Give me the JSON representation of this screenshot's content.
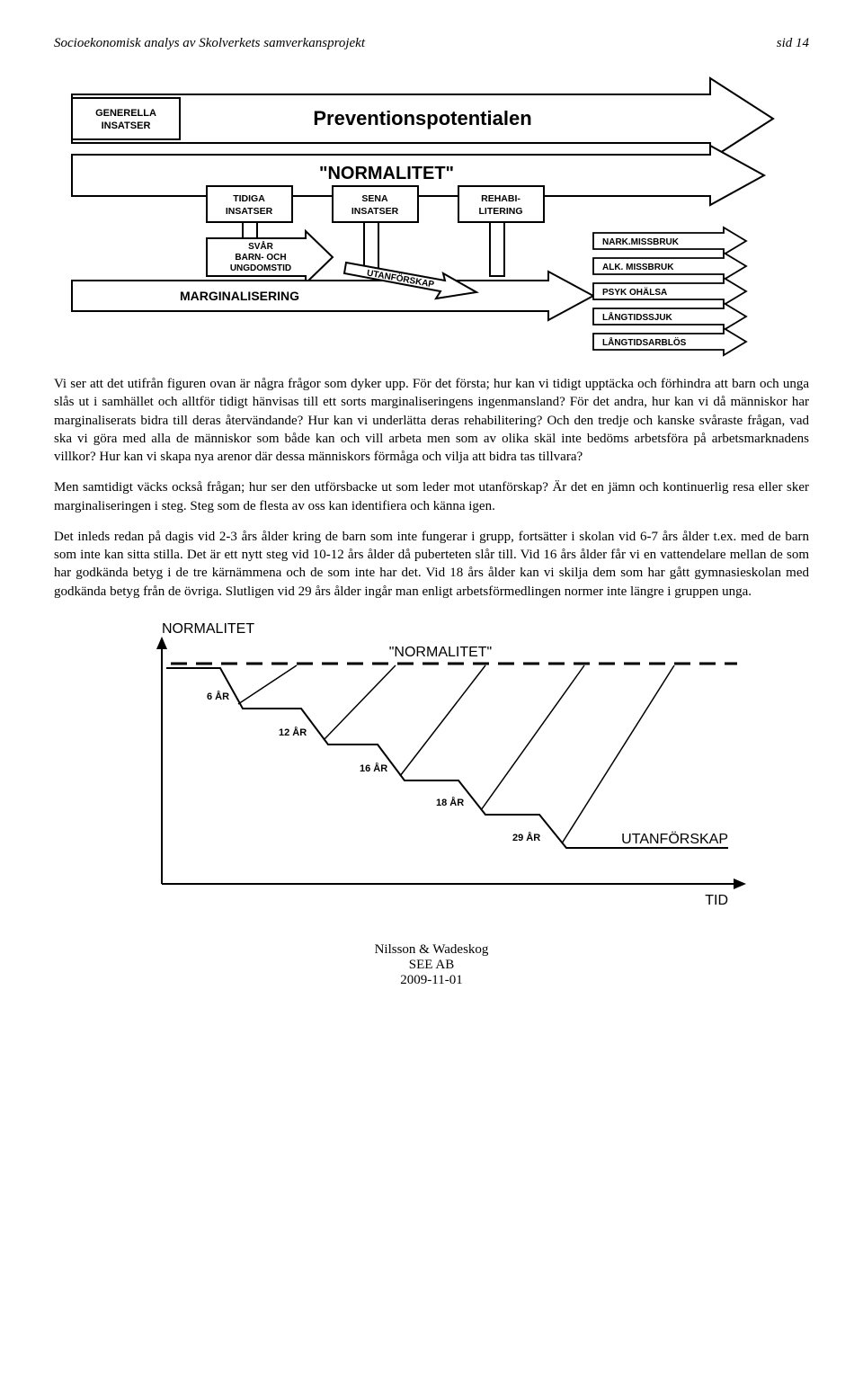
{
  "header": {
    "title": "Socioekonomisk analys av Skolverkets samverkansprojekt",
    "page": "sid 14"
  },
  "diagram1": {
    "type": "flowchart",
    "title": "Preventionspotentialen",
    "normalitet": "\"NORMALITET\"",
    "left_box": "GENERELLA\nINSATSER",
    "stage_boxes": [
      "TIDIGA\nINSATSER",
      "SENA\nINSATSER",
      "REHABI-\nLITERING"
    ],
    "svar_box": "SVÅR\nBARN- OCH\nUNGDOMSTID",
    "marginalisering": "MARGINALISERING",
    "utanforskap": "UTANFÖRSKAP",
    "outcome_boxes": [
      "NARK.MISSBRUK",
      "ALK. MISSBRUK",
      "PSYK OHÄLSA",
      "LÅNGTIDSSJUK",
      "LÅNGTIDSARBLÖS"
    ],
    "colors": {
      "stroke": "#000000",
      "fill": "#ffffff",
      "text": "#000000"
    },
    "font": {
      "label_size": 11,
      "title_size": 22,
      "normalitet_size": 20,
      "marg_size": 14
    }
  },
  "paragraphs": [
    "Vi ser att det utifrån figuren ovan är några frågor som dyker upp. För det första; hur kan vi tidigt upptäcka och förhindra att barn och unga slås ut i samhället och alltför tidigt hänvisas till ett sorts marginaliseringens ingenmansland? För det andra, hur kan vi då människor har marginaliserats bidra till deras återvändande? Hur kan vi underlätta deras rehabilitering? Och den tredje och kanske svåraste frågan, vad ska vi göra med alla de människor som både kan och vill arbeta men som av olika skäl inte bedöms arbetsföra på arbetsmarknadens villkor? Hur kan vi skapa nya arenor där dessa människors förmåga och vilja att bidra tas tillvara?",
    "Men samtidigt väcks också frågan; hur ser den utförsbacke ut som leder mot utanförskap? Är det en jämn och kontinuerlig resa eller sker marginaliseringen i steg. Steg som de flesta av oss kan identifiera och känna igen.",
    "Det inleds redan på dagis vid 2-3 års ålder kring de barn som inte fungerar i grupp, fortsätter i skolan vid 6-7 års ålder t.ex. med de barn som inte kan sitta stilla. Det är ett nytt steg vid 10-12 års ålder då puberteten slår till. Vid 16 års ålder får vi en vattendelare mellan de som har godkända betyg i de tre kärnämmena och de som inte har det. Vid 18 års ålder kan vi skilja dem som har gått gymnasieskolan med godkända betyg från de övriga. Slutligen vid 29 års ålder ingår man enligt arbetsförmedlingen normer inte längre i gruppen unga."
  ],
  "diagram2": {
    "type": "line-step",
    "y_label": "NORMALITET",
    "top_label": "\"NORMALITET\"",
    "bottom_label": "UTANFÖRSKAP",
    "x_label": "TID",
    "steps": [
      "6 ÅR",
      "12 ÅR",
      "16 ÅR",
      "18 ÅR",
      "29 ÅR"
    ],
    "colors": {
      "stroke": "#000000",
      "text": "#000000"
    },
    "font": {
      "axis_size": 16,
      "step_size": 11
    }
  },
  "footer": {
    "line1": "Nilsson & Wadeskog",
    "line2": "SEE AB",
    "line3": "2009-11-01"
  }
}
